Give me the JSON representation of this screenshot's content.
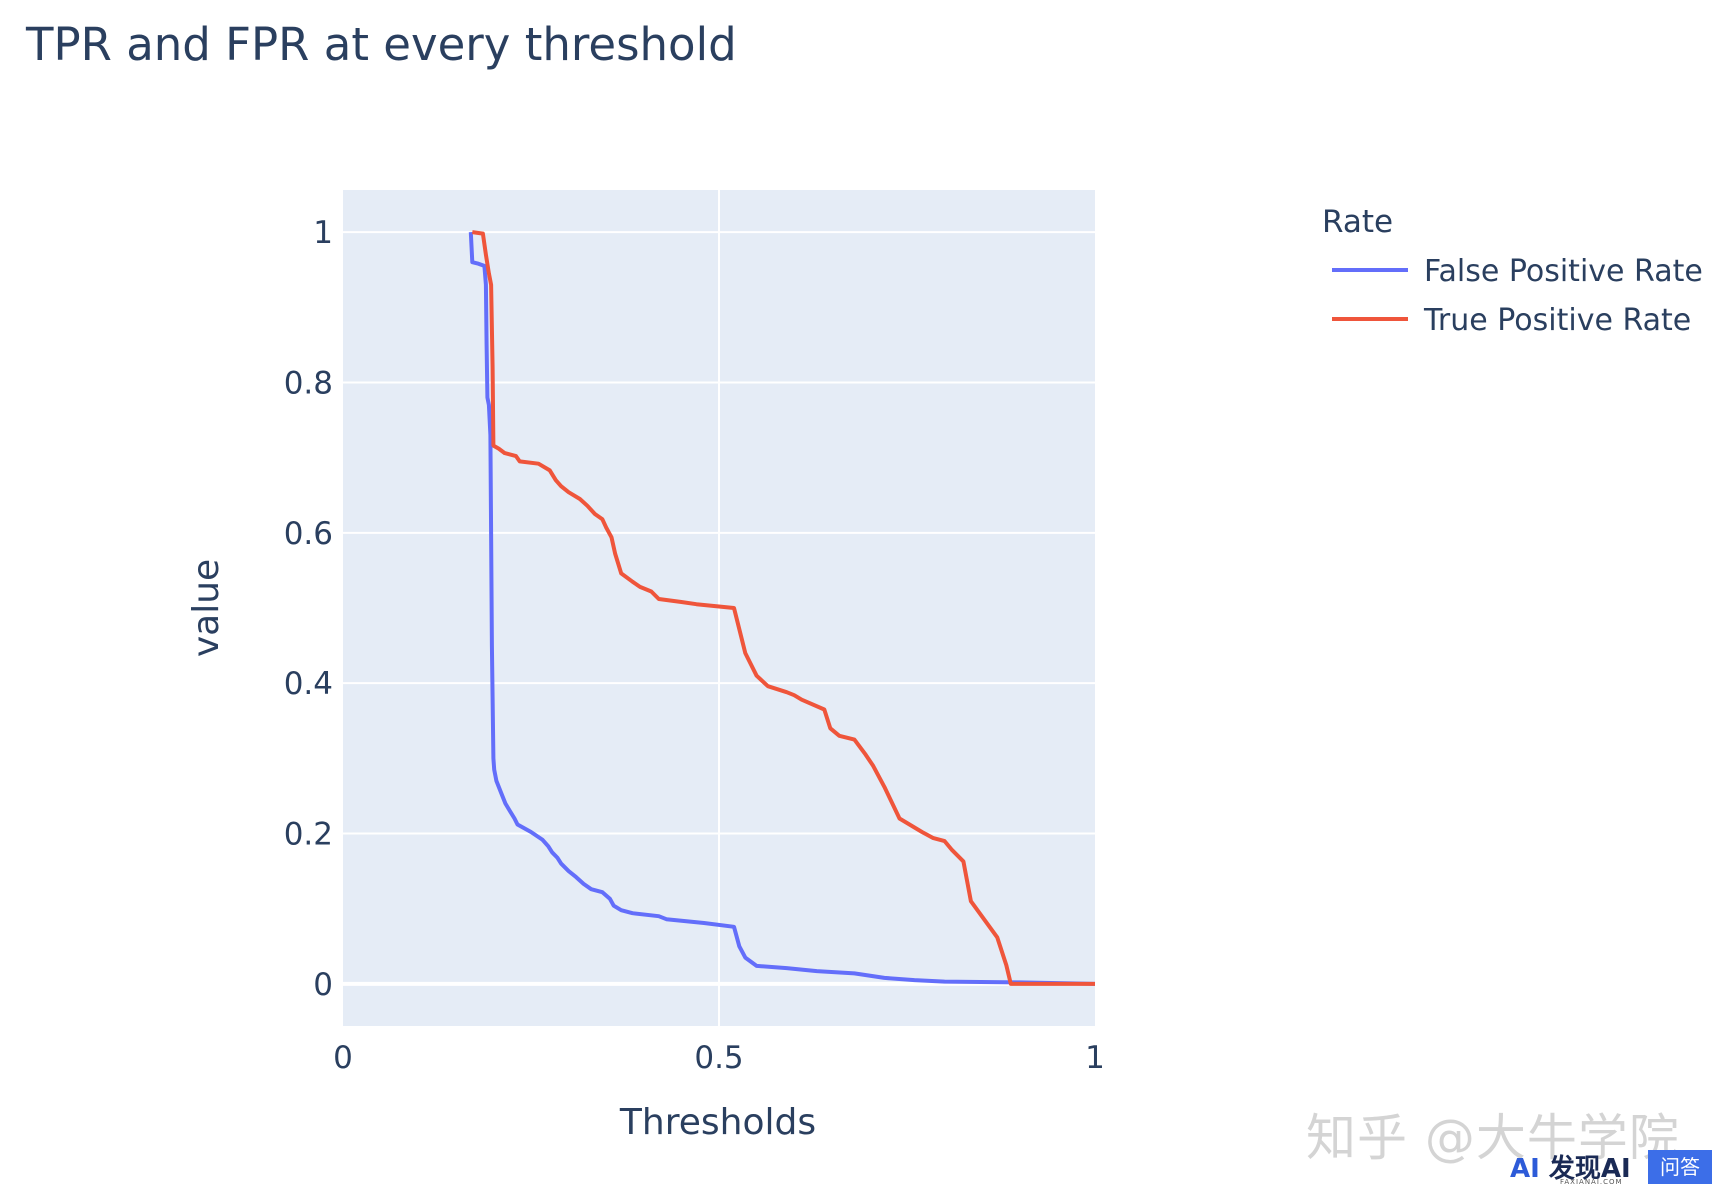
{
  "colors": {
    "plot_bg": "#e5ecf6",
    "grid": "#ffffff",
    "text": "#2a3f5f",
    "fpr": "#636efa",
    "tpr": "#ef553b"
  },
  "legend": {
    "title": "Rate",
    "position": "top-right-outside"
  },
  "watermark": {
    "text": "知乎 @大牛学院",
    "logo_mark": "AI",
    "logo_text": "发现AI",
    "logo_subtext": "FAXIANAI.COM",
    "badge": "问答"
  },
  "chart_data": {
    "type": "line",
    "title": "TPR and FPR at every threshold",
    "xlabel": "Thresholds",
    "ylabel": "value",
    "xlim": [
      0,
      1
    ],
    "ylim": [
      -0.056,
      1.056
    ],
    "xticks": [
      0,
      0.5,
      1
    ],
    "xtick_labels": [
      "0",
      "0.5",
      "1"
    ],
    "yticks": [
      0,
      0.2,
      0.4,
      0.6,
      0.8,
      1
    ],
    "ytick_labels": [
      "0",
      "0.2",
      "0.4",
      "0.6",
      "0.8",
      "1"
    ],
    "grid": true,
    "series": [
      {
        "name": "False Positive Rate",
        "color": "#636efa",
        "points": [
          [
            0.17,
            1.0
          ],
          [
            0.172,
            0.96
          ],
          [
            0.18,
            0.958
          ],
          [
            0.188,
            0.955
          ],
          [
            0.19,
            0.93
          ],
          [
            0.191,
            0.85
          ],
          [
            0.192,
            0.78
          ],
          [
            0.194,
            0.77
          ],
          [
            0.196,
            0.73
          ],
          [
            0.197,
            0.6
          ],
          [
            0.198,
            0.45
          ],
          [
            0.2,
            0.3
          ],
          [
            0.201,
            0.285
          ],
          [
            0.204,
            0.27
          ],
          [
            0.21,
            0.255
          ],
          [
            0.216,
            0.24
          ],
          [
            0.222,
            0.23
          ],
          [
            0.228,
            0.22
          ],
          [
            0.232,
            0.212
          ],
          [
            0.25,
            0.202
          ],
          [
            0.265,
            0.192
          ],
          [
            0.273,
            0.183
          ],
          [
            0.278,
            0.175
          ],
          [
            0.285,
            0.168
          ],
          [
            0.29,
            0.16
          ],
          [
            0.3,
            0.15
          ],
          [
            0.31,
            0.142
          ],
          [
            0.32,
            0.133
          ],
          [
            0.33,
            0.126
          ],
          [
            0.345,
            0.122
          ],
          [
            0.355,
            0.113
          ],
          [
            0.36,
            0.104
          ],
          [
            0.37,
            0.098
          ],
          [
            0.385,
            0.094
          ],
          [
            0.42,
            0.09
          ],
          [
            0.43,
            0.086
          ],
          [
            0.48,
            0.081
          ],
          [
            0.52,
            0.076
          ],
          [
            0.527,
            0.05
          ],
          [
            0.535,
            0.035
          ],
          [
            0.55,
            0.024
          ],
          [
            0.59,
            0.021
          ],
          [
            0.63,
            0.017
          ],
          [
            0.68,
            0.014
          ],
          [
            0.72,
            0.008
          ],
          [
            0.76,
            0.005
          ],
          [
            0.8,
            0.003
          ],
          [
            0.9,
            0.002
          ],
          [
            1.0,
            0.0
          ]
        ]
      },
      {
        "name": "True Positive Rate",
        "color": "#ef553b",
        "points": [
          [
            0.172,
            1.0
          ],
          [
            0.186,
            0.998
          ],
          [
            0.19,
            0.97
          ],
          [
            0.194,
            0.945
          ],
          [
            0.197,
            0.93
          ],
          [
            0.199,
            0.82
          ],
          [
            0.2,
            0.716
          ],
          [
            0.207,
            0.712
          ],
          [
            0.215,
            0.706
          ],
          [
            0.23,
            0.702
          ],
          [
            0.235,
            0.695
          ],
          [
            0.26,
            0.692
          ],
          [
            0.275,
            0.683
          ],
          [
            0.283,
            0.67
          ],
          [
            0.29,
            0.662
          ],
          [
            0.3,
            0.654
          ],
          [
            0.315,
            0.645
          ],
          [
            0.325,
            0.636
          ],
          [
            0.335,
            0.625
          ],
          [
            0.345,
            0.618
          ],
          [
            0.35,
            0.607
          ],
          [
            0.357,
            0.594
          ],
          [
            0.362,
            0.572
          ],
          [
            0.37,
            0.546
          ],
          [
            0.385,
            0.535
          ],
          [
            0.395,
            0.528
          ],
          [
            0.41,
            0.522
          ],
          [
            0.42,
            0.512
          ],
          [
            0.45,
            0.508
          ],
          [
            0.47,
            0.505
          ],
          [
            0.52,
            0.5
          ],
          [
            0.535,
            0.44
          ],
          [
            0.55,
            0.41
          ],
          [
            0.565,
            0.396
          ],
          [
            0.59,
            0.388
          ],
          [
            0.6,
            0.384
          ],
          [
            0.61,
            0.378
          ],
          [
            0.64,
            0.365
          ],
          [
            0.648,
            0.34
          ],
          [
            0.66,
            0.33
          ],
          [
            0.68,
            0.325
          ],
          [
            0.695,
            0.305
          ],
          [
            0.705,
            0.29
          ],
          [
            0.72,
            0.262
          ],
          [
            0.74,
            0.22
          ],
          [
            0.77,
            0.202
          ],
          [
            0.785,
            0.194
          ],
          [
            0.8,
            0.19
          ],
          [
            0.81,
            0.178
          ],
          [
            0.825,
            0.163
          ],
          [
            0.835,
            0.11
          ],
          [
            0.87,
            0.062
          ],
          [
            0.882,
            0.025
          ],
          [
            0.888,
            0.0
          ],
          [
            1.0,
            0.0
          ]
        ]
      }
    ]
  }
}
